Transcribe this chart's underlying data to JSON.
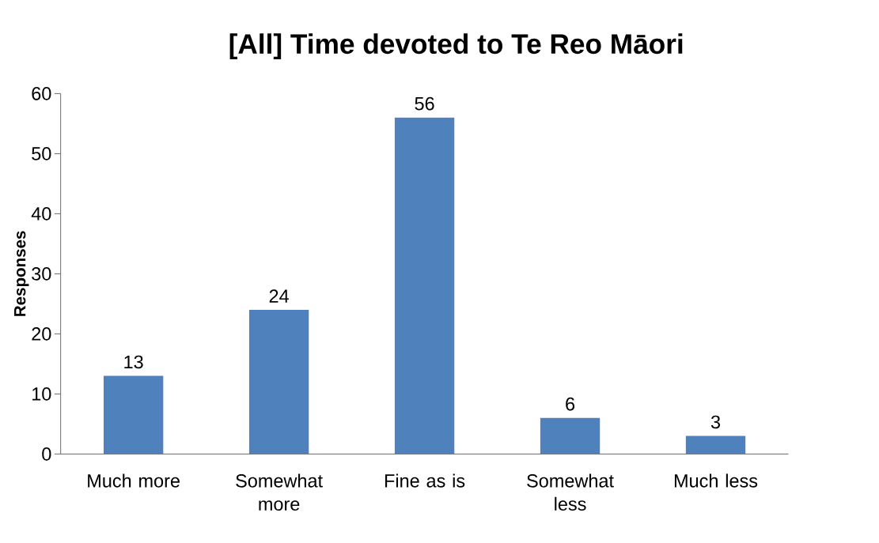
{
  "chart_data": {
    "type": "bar",
    "title": "[All] Time devoted to Te Reo Māori",
    "ylabel": "Responses",
    "categories": [
      "Much more",
      "Somewhat more",
      "Fine as is",
      "Somewhat less",
      "Much less"
    ],
    "values": [
      13,
      24,
      56,
      6,
      3
    ],
    "color": "#4f81bd",
    "ylim": [
      0,
      60
    ],
    "yticks": [
      0,
      10,
      20,
      30,
      40,
      50,
      60
    ],
    "data_labels": true
  }
}
